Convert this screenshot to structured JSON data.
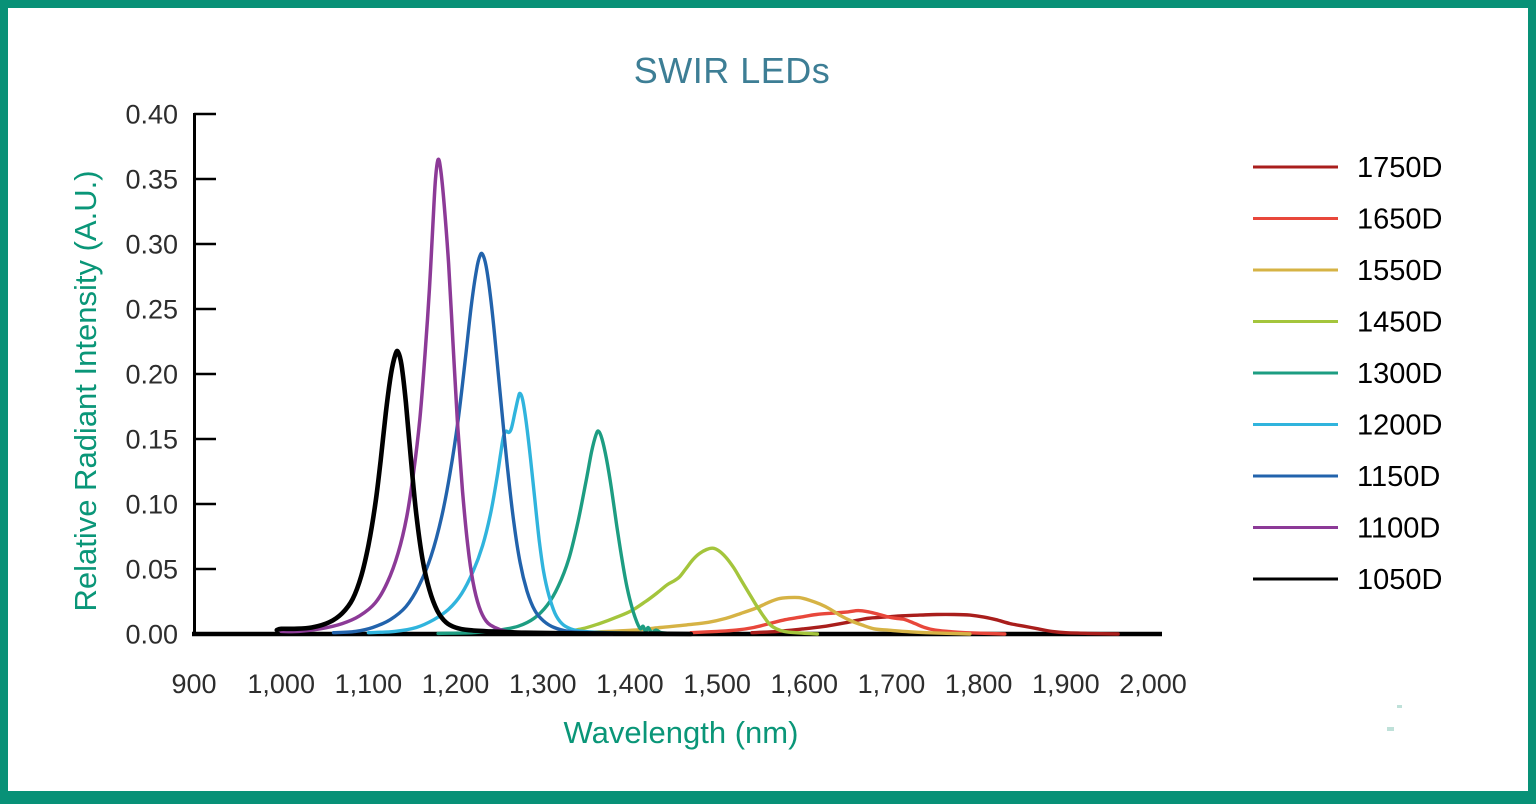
{
  "page": {
    "border_color": "#089177",
    "title_color": "#3d7e95",
    "axis_label_color": "#0a9678",
    "tick_label_color": "#2d2d2d",
    "legend_text_color": "#000000"
  },
  "chart_data": {
    "type": "line",
    "title": "SWIR LEDs",
    "xlabel": "Wavelength (nm)",
    "ylabel": "Relative Radiant Intensity (A.U.)",
    "xlim": [
      900,
      2000
    ],
    "ylim": [
      0,
      0.4
    ],
    "grid": false,
    "legend_position": "right",
    "x_ticks": [
      {
        "value": 900,
        "label": "900"
      },
      {
        "value": 1000,
        "label": "1,000"
      },
      {
        "value": 1100,
        "label": "1,100"
      },
      {
        "value": 1200,
        "label": "1,200"
      },
      {
        "value": 1300,
        "label": "1,300"
      },
      {
        "value": 1400,
        "label": "1,400"
      },
      {
        "value": 1500,
        "label": "1,500"
      },
      {
        "value": 1600,
        "label": "1,600"
      },
      {
        "value": 1700,
        "label": "1,700"
      },
      {
        "value": 1800,
        "label": "1,800"
      },
      {
        "value": 1900,
        "label": "1,900"
      },
      {
        "value": 2000,
        "label": "2,000"
      }
    ],
    "y_ticks": [
      {
        "value": 0.0,
        "label": "0.00"
      },
      {
        "value": 0.05,
        "label": "0.05"
      },
      {
        "value": 0.1,
        "label": "0.10"
      },
      {
        "value": 0.15,
        "label": "0.15"
      },
      {
        "value": 0.2,
        "label": "0.20"
      },
      {
        "value": 0.25,
        "label": "0.25"
      },
      {
        "value": 0.3,
        "label": "0.30"
      },
      {
        "value": 0.35,
        "label": "0.35"
      },
      {
        "value": 0.4,
        "label": "0.40"
      }
    ],
    "series": [
      {
        "name": "1750D",
        "color": "#a91e1c",
        "stroke_width": 3.4,
        "peak_nm": 1760,
        "peak_intensity": 0.015,
        "points": [
          [
            1540,
            0.001
          ],
          [
            1570,
            0.002
          ],
          [
            1600,
            0.004
          ],
          [
            1625,
            0.006
          ],
          [
            1650,
            0.009
          ],
          [
            1672,
            0.012
          ],
          [
            1692,
            0.013
          ],
          [
            1712,
            0.014
          ],
          [
            1732,
            0.0145
          ],
          [
            1752,
            0.015
          ],
          [
            1772,
            0.015
          ],
          [
            1790,
            0.0145
          ],
          [
            1806,
            0.013
          ],
          [
            1820,
            0.011
          ],
          [
            1836,
            0.008
          ],
          [
            1852,
            0.006
          ],
          [
            1868,
            0.004
          ],
          [
            1884,
            0.002
          ],
          [
            1900,
            0.001
          ],
          [
            1925,
            0.0005
          ],
          [
            1960,
            0
          ]
        ]
      },
      {
        "name": "1650D",
        "color": "#e8473b",
        "stroke_width": 3.4,
        "peak_nm": 1662,
        "peak_intensity": 0.018,
        "points": [
          [
            1470,
            0.001
          ],
          [
            1500,
            0.002
          ],
          [
            1522,
            0.003
          ],
          [
            1542,
            0.005
          ],
          [
            1560,
            0.008
          ],
          [
            1578,
            0.011
          ],
          [
            1596,
            0.013
          ],
          [
            1614,
            0.015
          ],
          [
            1632,
            0.016
          ],
          [
            1650,
            0.017
          ],
          [
            1662,
            0.018
          ],
          [
            1674,
            0.017
          ],
          [
            1686,
            0.015
          ],
          [
            1697,
            0.013
          ],
          [
            1706,
            0.012
          ],
          [
            1716,
            0.011
          ],
          [
            1727,
            0.008
          ],
          [
            1738,
            0.005
          ],
          [
            1750,
            0.003
          ],
          [
            1765,
            0.002
          ],
          [
            1785,
            0.001
          ],
          [
            1830,
            0
          ]
        ]
      },
      {
        "name": "1550D",
        "color": "#d6b345",
        "stroke_width": 3.4,
        "peak_nm": 1588,
        "peak_intensity": 0.028,
        "points": [
          [
            1340,
            0.001
          ],
          [
            1375,
            0.002
          ],
          [
            1405,
            0.003
          ],
          [
            1435,
            0.005
          ],
          [
            1465,
            0.007
          ],
          [
            1490,
            0.009
          ],
          [
            1510,
            0.012
          ],
          [
            1528,
            0.016
          ],
          [
            1545,
            0.02
          ],
          [
            1558,
            0.024
          ],
          [
            1570,
            0.027
          ],
          [
            1582,
            0.028
          ],
          [
            1594,
            0.028
          ],
          [
            1606,
            0.026
          ],
          [
            1618,
            0.023
          ],
          [
            1630,
            0.019
          ],
          [
            1642,
            0.014
          ],
          [
            1654,
            0.01
          ],
          [
            1666,
            0.007
          ],
          [
            1680,
            0.004
          ],
          [
            1696,
            0.003
          ],
          [
            1715,
            0.002
          ],
          [
            1740,
            0.001
          ],
          [
            1790,
            0
          ]
        ]
      },
      {
        "name": "1450D",
        "color": "#a4c53c",
        "stroke_width": 3.4,
        "peak_nm": 1495,
        "peak_intensity": 0.066,
        "points": [
          [
            1320,
            0.001
          ],
          [
            1345,
            0.004
          ],
          [
            1365,
            0.008
          ],
          [
            1385,
            0.013
          ],
          [
            1402,
            0.018
          ],
          [
            1418,
            0.025
          ],
          [
            1432,
            0.032
          ],
          [
            1443,
            0.038
          ],
          [
            1451,
            0.041
          ],
          [
            1457,
            0.044
          ],
          [
            1464,
            0.05
          ],
          [
            1472,
            0.057
          ],
          [
            1480,
            0.062
          ],
          [
            1488,
            0.065
          ],
          [
            1495,
            0.066
          ],
          [
            1502,
            0.064
          ],
          [
            1510,
            0.059
          ],
          [
            1519,
            0.051
          ],
          [
            1528,
            0.041
          ],
          [
            1537,
            0.031
          ],
          [
            1546,
            0.021
          ],
          [
            1554,
            0.013
          ],
          [
            1561,
            0.007
          ],
          [
            1568,
            0.004
          ],
          [
            1577,
            0.002
          ],
          [
            1590,
            0.001
          ],
          [
            1615,
            0
          ]
        ]
      },
      {
        "name": "1300D",
        "color": "#1d9d82",
        "stroke_width": 3.4,
        "peak_nm": 1364,
        "peak_intensity": 0.156,
        "points": [
          [
            1180,
            0.0005
          ],
          [
            1220,
            0.001
          ],
          [
            1250,
            0.003
          ],
          [
            1272,
            0.006
          ],
          [
            1290,
            0.012
          ],
          [
            1305,
            0.022
          ],
          [
            1318,
            0.037
          ],
          [
            1330,
            0.058
          ],
          [
            1340,
            0.085
          ],
          [
            1349,
            0.115
          ],
          [
            1356,
            0.14
          ],
          [
            1361,
            0.153
          ],
          [
            1364,
            0.156
          ],
          [
            1368,
            0.15
          ],
          [
            1373,
            0.135
          ],
          [
            1379,
            0.111
          ],
          [
            1385,
            0.083
          ],
          [
            1391,
            0.057
          ],
          [
            1397,
            0.035
          ],
          [
            1403,
            0.019
          ],
          [
            1408,
            0.009
          ],
          [
            1412,
            0.004
          ],
          [
            1415,
            0.006
          ],
          [
            1418,
            0.002
          ],
          [
            1421,
            0.005
          ],
          [
            1425,
            0.001
          ],
          [
            1430,
            0.003
          ],
          [
            1436,
            0.001
          ],
          [
            1448,
            0.0005
          ],
          [
            1470,
            0
          ]
        ]
      },
      {
        "name": "1200D",
        "color": "#30b4dd",
        "stroke_width": 3.4,
        "peak_nm": 1274,
        "peak_intensity": 0.185,
        "points": [
          [
            1100,
            0.001
          ],
          [
            1130,
            0.002
          ],
          [
            1155,
            0.005
          ],
          [
            1175,
            0.011
          ],
          [
            1192,
            0.019
          ],
          [
            1207,
            0.031
          ],
          [
            1220,
            0.048
          ],
          [
            1231,
            0.068
          ],
          [
            1240,
            0.092
          ],
          [
            1247,
            0.118
          ],
          [
            1252,
            0.14
          ],
          [
            1255,
            0.152
          ],
          [
            1258,
            0.156
          ],
          [
            1261,
            0.155
          ],
          [
            1264,
            0.158
          ],
          [
            1268,
            0.17
          ],
          [
            1272,
            0.182
          ],
          [
            1274,
            0.185
          ],
          [
            1277,
            0.18
          ],
          [
            1281,
            0.163
          ],
          [
            1286,
            0.135
          ],
          [
            1291,
            0.103
          ],
          [
            1296,
            0.072
          ],
          [
            1301,
            0.048
          ],
          [
            1307,
            0.03
          ],
          [
            1314,
            0.016
          ],
          [
            1322,
            0.008
          ],
          [
            1332,
            0.004
          ],
          [
            1347,
            0.002
          ],
          [
            1375,
            0.001
          ],
          [
            1440,
            0
          ]
        ]
      },
      {
        "name": "1150D",
        "color": "#2263ac",
        "stroke_width": 3.4,
        "peak_nm": 1231,
        "peak_intensity": 0.292,
        "points": [
          [
            1060,
            0.001
          ],
          [
            1085,
            0.002
          ],
          [
            1105,
            0.005
          ],
          [
            1125,
            0.011
          ],
          [
            1143,
            0.021
          ],
          [
            1158,
            0.037
          ],
          [
            1172,
            0.06
          ],
          [
            1184,
            0.09
          ],
          [
            1194,
            0.125
          ],
          [
            1203,
            0.165
          ],
          [
            1211,
            0.21
          ],
          [
            1218,
            0.252
          ],
          [
            1224,
            0.28
          ],
          [
            1228,
            0.291
          ],
          [
            1231,
            0.292
          ],
          [
            1235,
            0.283
          ],
          [
            1240,
            0.26
          ],
          [
            1246,
            0.222
          ],
          [
            1253,
            0.172
          ],
          [
            1260,
            0.125
          ],
          [
            1267,
            0.085
          ],
          [
            1274,
            0.055
          ],
          [
            1282,
            0.033
          ],
          [
            1291,
            0.018
          ],
          [
            1301,
            0.01
          ],
          [
            1313,
            0.005
          ],
          [
            1330,
            0.002
          ],
          [
            1360,
            0.001
          ],
          [
            1420,
            0
          ]
        ]
      },
      {
        "name": "1100D",
        "color": "#8c3a97",
        "stroke_width": 3.5,
        "peak_nm": 1180,
        "peak_intensity": 0.365,
        "points": [
          [
            1000,
            0.002
          ],
          [
            1020,
            0.002
          ],
          [
            1045,
            0.004
          ],
          [
            1070,
            0.008
          ],
          [
            1090,
            0.014
          ],
          [
            1108,
            0.024
          ],
          [
            1122,
            0.04
          ],
          [
            1134,
            0.062
          ],
          [
            1144,
            0.09
          ],
          [
            1152,
            0.125
          ],
          [
            1159,
            0.165
          ],
          [
            1165,
            0.215
          ],
          [
            1170,
            0.265
          ],
          [
            1174,
            0.315
          ],
          [
            1177,
            0.35
          ],
          [
            1180,
            0.365
          ],
          [
            1183,
            0.357
          ],
          [
            1187,
            0.33
          ],
          [
            1192,
            0.285
          ],
          [
            1197,
            0.225
          ],
          [
            1202,
            0.165
          ],
          [
            1208,
            0.11
          ],
          [
            1214,
            0.068
          ],
          [
            1220,
            0.04
          ],
          [
            1227,
            0.021
          ],
          [
            1235,
            0.01
          ],
          [
            1245,
            0.005
          ],
          [
            1258,
            0.002
          ],
          [
            1275,
            0.001
          ],
          [
            1310,
            0.0005
          ],
          [
            1380,
            0
          ]
        ]
      },
      {
        "name": "1050D",
        "color": "#000000",
        "stroke_width": 4.6,
        "peak_nm": 1133,
        "peak_intensity": 0.217,
        "points": [
          [
            995,
            0.003
          ],
          [
            1000,
            0.004
          ],
          [
            1015,
            0.004
          ],
          [
            1035,
            0.005
          ],
          [
            1055,
            0.009
          ],
          [
            1070,
            0.016
          ],
          [
            1082,
            0.027
          ],
          [
            1092,
            0.045
          ],
          [
            1100,
            0.068
          ],
          [
            1108,
            0.1
          ],
          [
            1114,
            0.133
          ],
          [
            1120,
            0.17
          ],
          [
            1126,
            0.2
          ],
          [
            1131,
            0.215
          ],
          [
            1134,
            0.217
          ],
          [
            1138,
            0.207
          ],
          [
            1143,
            0.178
          ],
          [
            1149,
            0.133
          ],
          [
            1155,
            0.092
          ],
          [
            1162,
            0.058
          ],
          [
            1170,
            0.034
          ],
          [
            1179,
            0.018
          ],
          [
            1189,
            0.009
          ],
          [
            1200,
            0.005
          ],
          [
            1215,
            0.003
          ],
          [
            1240,
            0.002
          ],
          [
            1280,
            0.001
          ],
          [
            1340,
            0.0005
          ],
          [
            1430,
            0.0002
          ],
          [
            1470,
            0
          ]
        ]
      }
    ]
  }
}
